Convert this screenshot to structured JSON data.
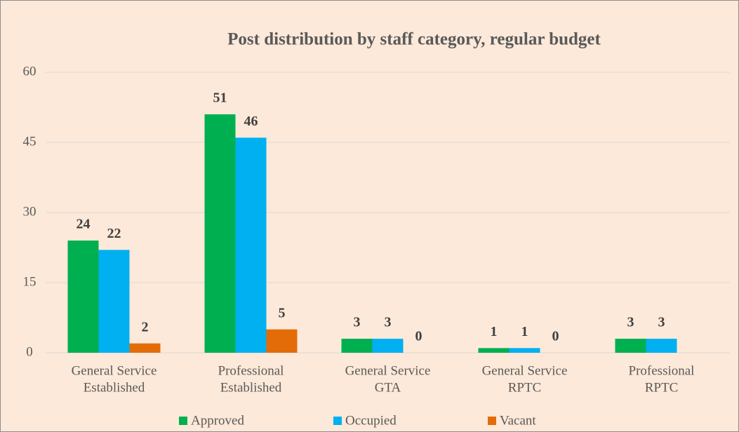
{
  "chart_data": {
    "type": "bar",
    "title": "Post distribution by staff category, regular budget",
    "categories": [
      [
        "General Service",
        "Established"
      ],
      [
        "Professional",
        "Established"
      ],
      [
        "General Service",
        "GTA"
      ],
      [
        "General Service",
        "RPTC"
      ],
      [
        "Professional",
        "RPTC"
      ]
    ],
    "series": [
      {
        "name": "Approved",
        "color": "#00b050",
        "values": [
          24,
          51,
          3,
          1,
          3
        ]
      },
      {
        "name": "Occupied",
        "color": "#00b0f0",
        "values": [
          22,
          46,
          3,
          1,
          3
        ]
      },
      {
        "name": "Vacant",
        "color": "#e36c09",
        "values": [
          2,
          5,
          0,
          0,
          null
        ]
      }
    ],
    "ylim": [
      0,
      60
    ],
    "yticks": [
      0,
      15,
      30,
      45,
      60
    ],
    "grid": true,
    "legend": "bottom"
  }
}
